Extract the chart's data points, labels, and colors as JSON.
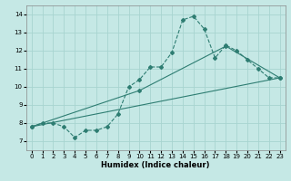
{
  "xlabel": "Humidex (Indice chaleur)",
  "xlim": [
    -0.5,
    23.5
  ],
  "ylim": [
    6.5,
    14.5
  ],
  "xticks": [
    0,
    1,
    2,
    3,
    4,
    5,
    6,
    7,
    8,
    9,
    10,
    11,
    12,
    13,
    14,
    15,
    16,
    17,
    18,
    19,
    20,
    21,
    22,
    23
  ],
  "yticks": [
    7,
    8,
    9,
    10,
    11,
    12,
    13,
    14
  ],
  "bg_color": "#c5e8e5",
  "grid_color": "#a8d4d0",
  "line_color": "#2e7d72",
  "line1_x": [
    0,
    1,
    2,
    3,
    4,
    5,
    6,
    7,
    8,
    9,
    10,
    11,
    12,
    13,
    14,
    15,
    16,
    17,
    18,
    19,
    20,
    21,
    22,
    23
  ],
  "line1_y": [
    7.8,
    8.0,
    8.0,
    7.8,
    7.2,
    7.6,
    7.6,
    7.8,
    8.5,
    10.0,
    10.4,
    11.1,
    11.1,
    11.9,
    13.7,
    13.9,
    13.2,
    11.6,
    12.3,
    12.0,
    11.5,
    11.0,
    10.5,
    10.5
  ],
  "line2_x": [
    0,
    23
  ],
  "line2_y": [
    7.8,
    10.5
  ],
  "line3_x": [
    0,
    10,
    18,
    23
  ],
  "line3_y": [
    7.8,
    9.8,
    12.25,
    10.5
  ]
}
